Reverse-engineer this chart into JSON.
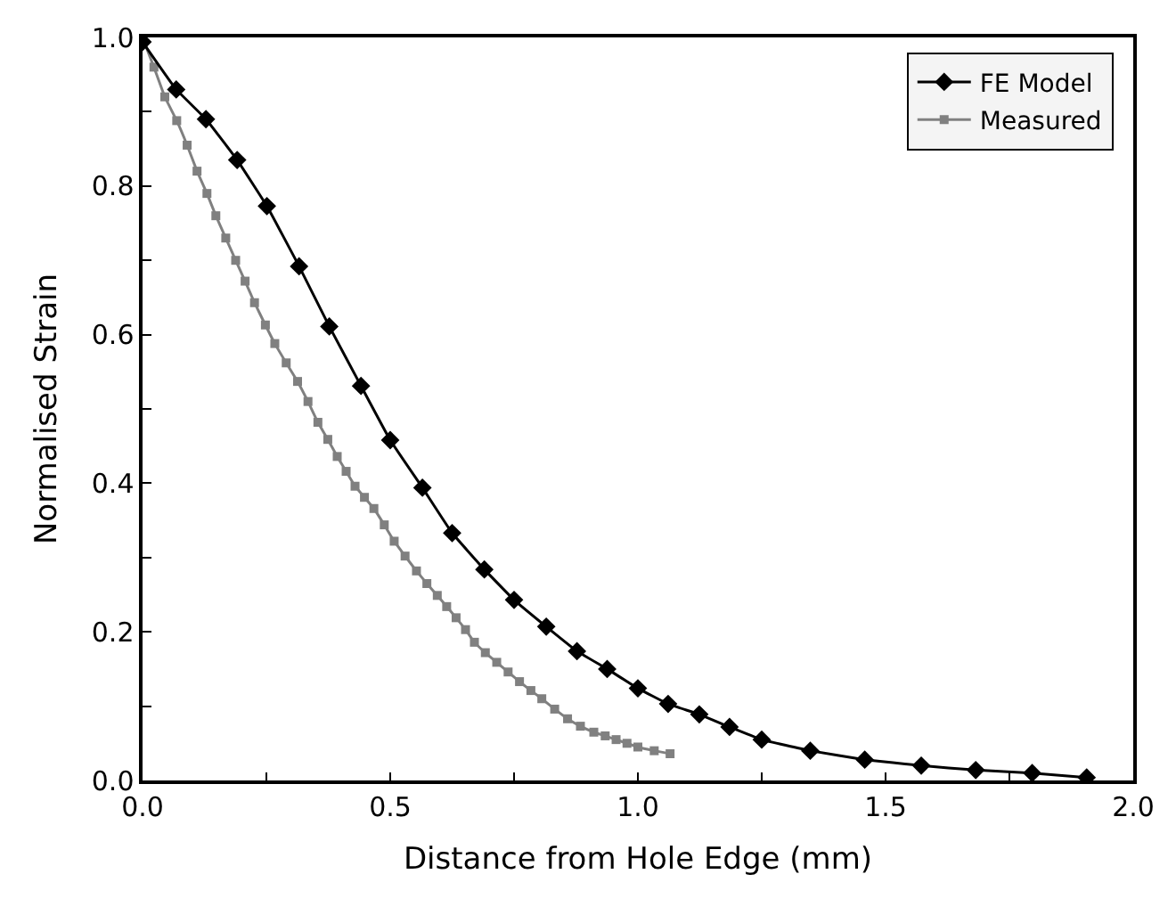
{
  "chart_data": {
    "type": "line",
    "xlabel": "Distance from Hole Edge (mm)",
    "ylabel": "Normalised Strain",
    "xlim": [
      0,
      2.0
    ],
    "ylim": [
      0,
      1.0
    ],
    "xticks": [
      {
        "value": 0,
        "label": "0.0"
      },
      {
        "value": 0.25,
        "label": null
      },
      {
        "value": 0.5,
        "label": "0.5"
      },
      {
        "value": 0.75,
        "label": null
      },
      {
        "value": 1.0,
        "label": "1.0"
      },
      {
        "value": 1.25,
        "label": null
      },
      {
        "value": 1.5,
        "label": "1.5"
      },
      {
        "value": 1.75,
        "label": null
      },
      {
        "value": 2.0,
        "label": "2.0"
      }
    ],
    "yticks": [
      {
        "value": 0,
        "label": "0.0"
      },
      {
        "value": 0.1,
        "label": null
      },
      {
        "value": 0.2,
        "label": "0.2"
      },
      {
        "value": 0.3,
        "label": null
      },
      {
        "value": 0.4,
        "label": "0.4"
      },
      {
        "value": 0.5,
        "label": null
      },
      {
        "value": 0.6,
        "label": "0.6"
      },
      {
        "value": 0.7,
        "label": null
      },
      {
        "value": 0.8,
        "label": "0.8"
      },
      {
        "value": 0.9,
        "label": null
      },
      {
        "value": 1.0,
        "label": "1.0"
      }
    ],
    "legend": "top right",
    "series": [
      {
        "name": "FE Model",
        "color": "#000000",
        "marker": "diamond",
        "x": [
          0,
          0.068,
          0.128,
          0.191,
          0.251,
          0.316,
          0.377,
          0.441,
          0.5,
          0.565,
          0.625,
          0.69,
          0.75,
          0.815,
          0.877,
          0.938,
          1.0,
          1.061,
          1.124,
          1.185,
          1.25,
          1.348,
          1.458,
          1.572,
          1.682,
          1.796,
          1.906
        ],
        "values": [
          0.994,
          0.93,
          0.89,
          0.835,
          0.773,
          0.692,
          0.611,
          0.531,
          0.458,
          0.394,
          0.333,
          0.284,
          0.243,
          0.207,
          0.174,
          0.15,
          0.124,
          0.103,
          0.089,
          0.072,
          0.055,
          0.04,
          0.028,
          0.02,
          0.014,
          0.01,
          0.004
        ]
      },
      {
        "name": "Measured",
        "color": "#808080",
        "marker": "square",
        "x": [
          0,
          0.023,
          0.045,
          0.069,
          0.09,
          0.11,
          0.13,
          0.148,
          0.168,
          0.188,
          0.207,
          0.226,
          0.248,
          0.267,
          0.29,
          0.313,
          0.334,
          0.354,
          0.374,
          0.393,
          0.411,
          0.429,
          0.448,
          0.467,
          0.488,
          0.508,
          0.53,
          0.553,
          0.574,
          0.595,
          0.614,
          0.633,
          0.652,
          0.67,
          0.692,
          0.715,
          0.738,
          0.761,
          0.784,
          0.806,
          0.832,
          0.858,
          0.884,
          0.911,
          0.934,
          0.956,
          0.978,
          1.0,
          1.033,
          1.065
        ],
        "values": [
          1.0,
          0.96,
          0.92,
          0.888,
          0.855,
          0.82,
          0.79,
          0.76,
          0.73,
          0.7,
          0.672,
          0.643,
          0.613,
          0.588,
          0.562,
          0.537,
          0.51,
          0.482,
          0.459,
          0.436,
          0.416,
          0.396,
          0.381,
          0.366,
          0.344,
          0.322,
          0.302,
          0.282,
          0.265,
          0.249,
          0.234,
          0.219,
          0.203,
          0.186,
          0.172,
          0.159,
          0.146,
          0.133,
          0.121,
          0.11,
          0.096,
          0.083,
          0.073,
          0.065,
          0.06,
          0.055,
          0.05,
          0.045,
          0.04,
          0.036
        ]
      }
    ]
  }
}
